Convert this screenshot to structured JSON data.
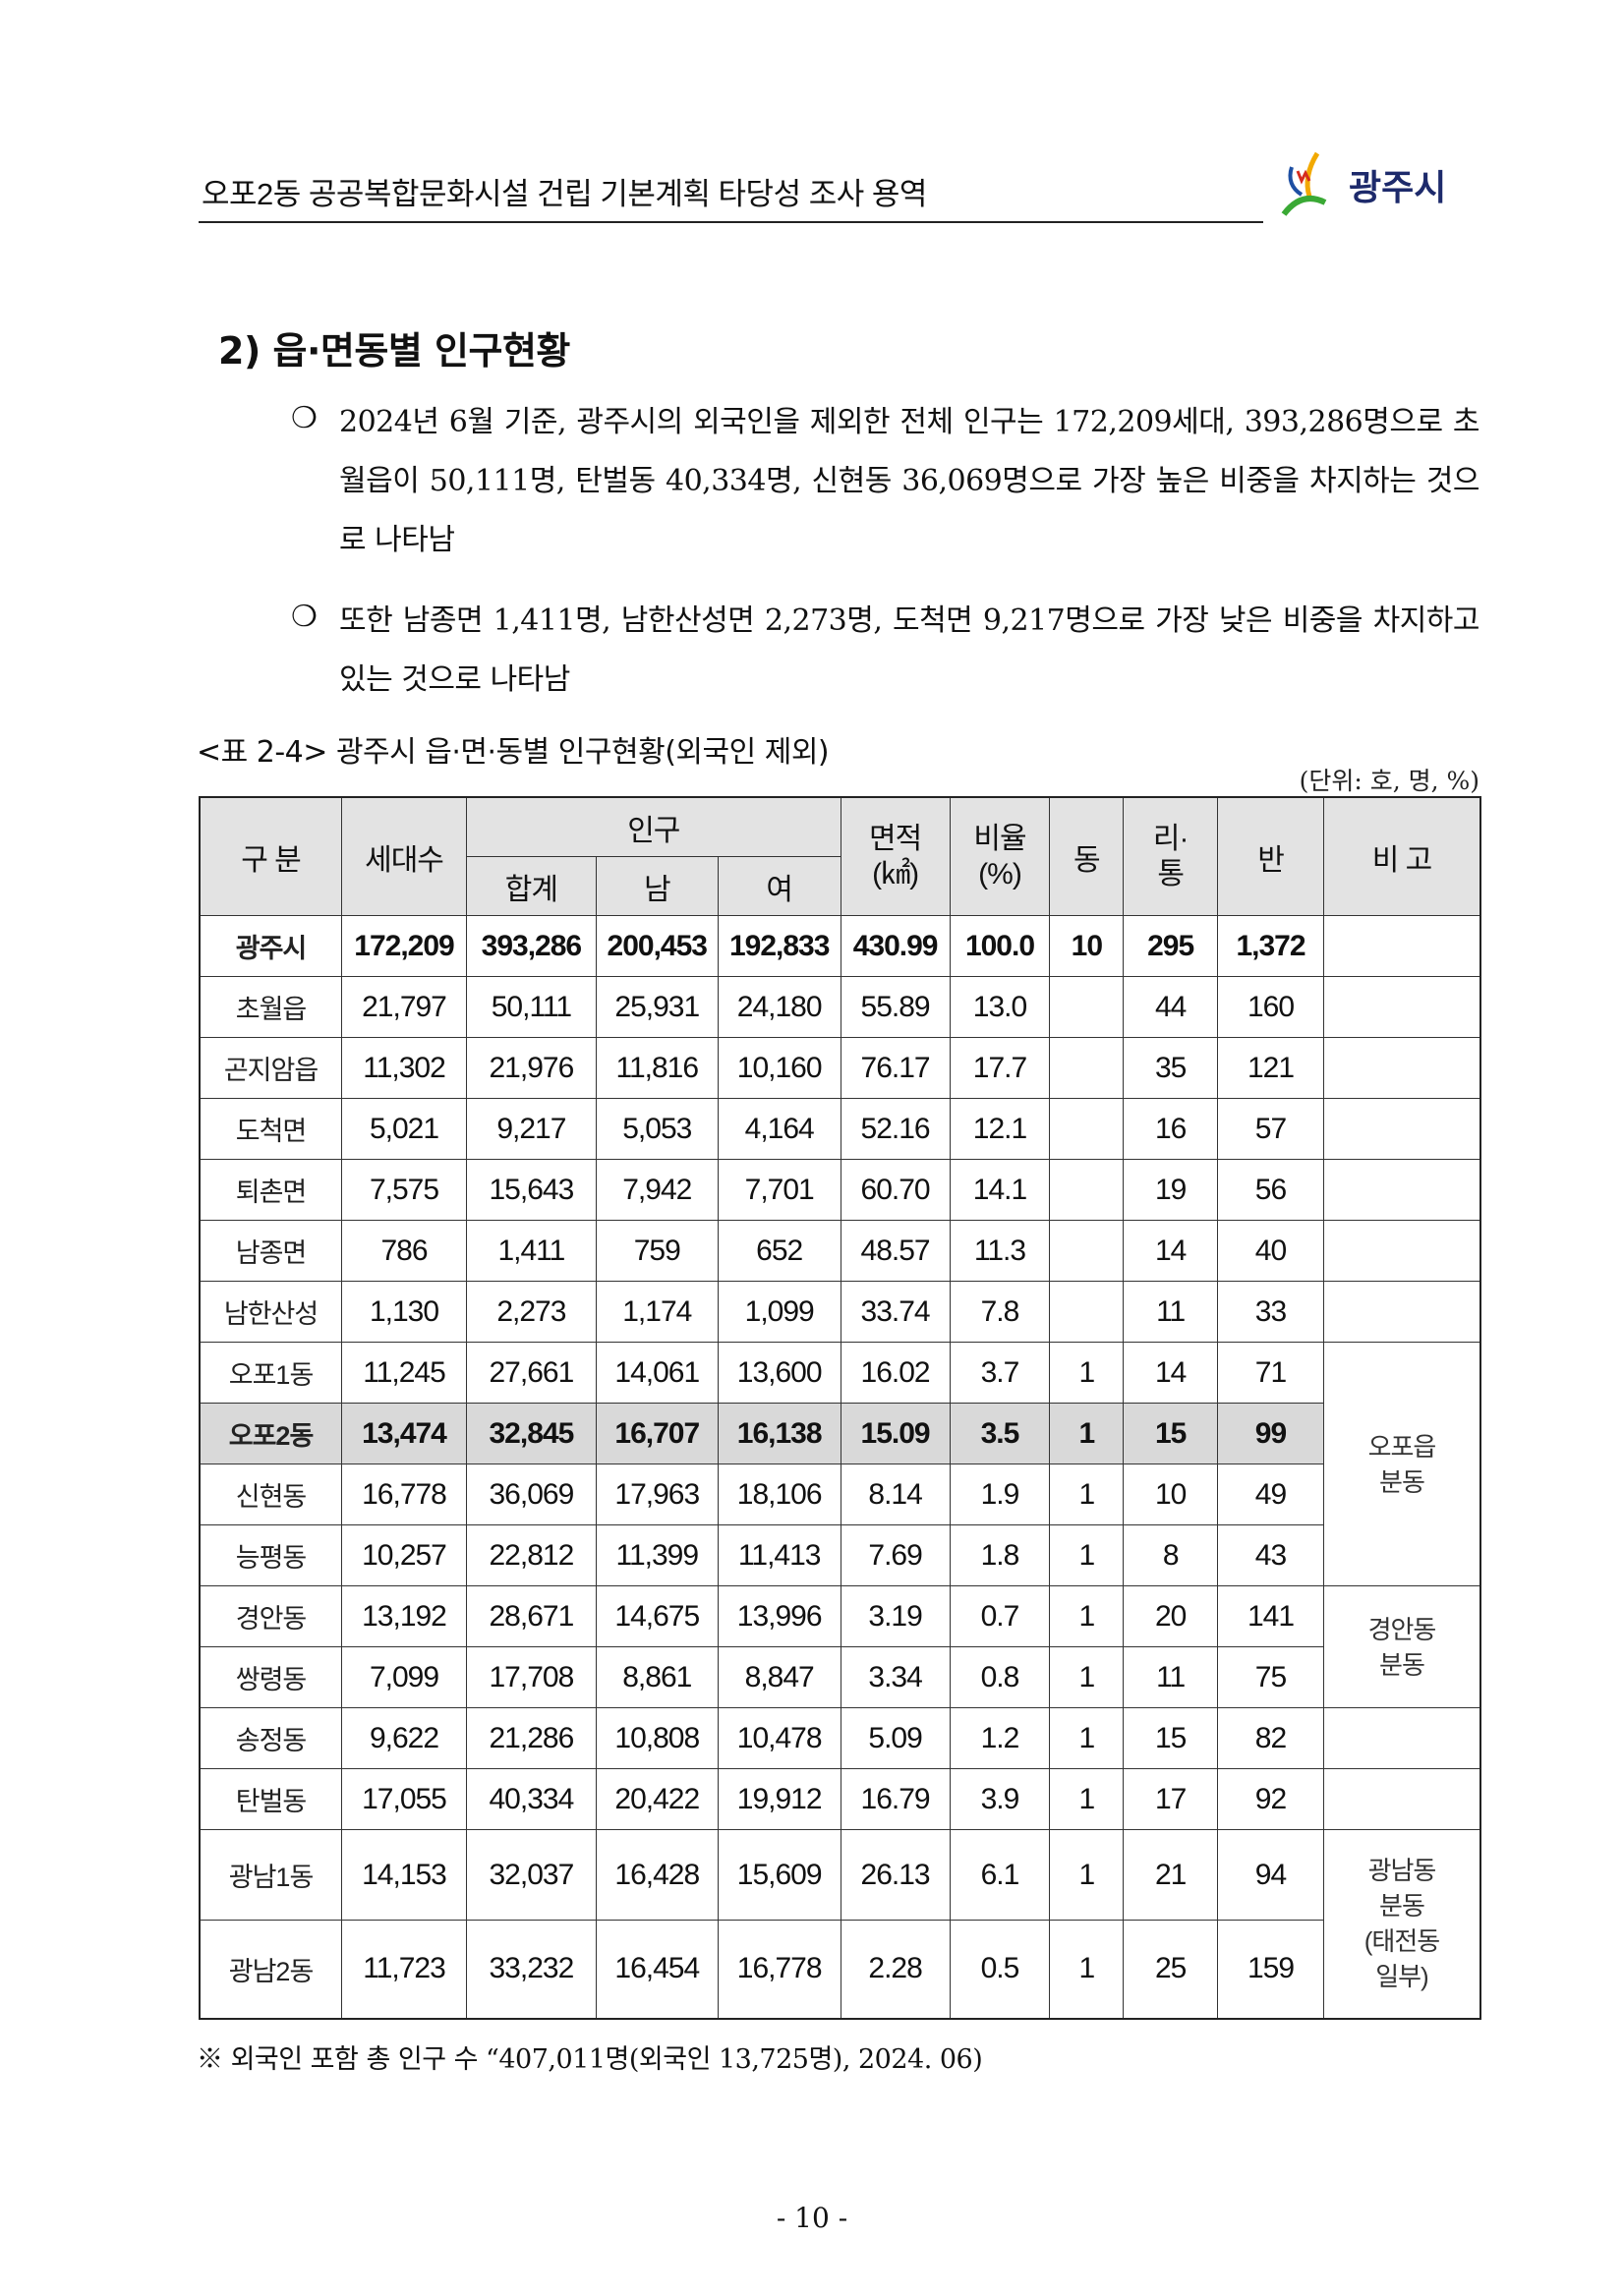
{
  "header": {
    "title": "오포2동 공공복합문화시설 건립 기본계획 타당성 조사 용역",
    "logo_text": "광주시"
  },
  "section": {
    "heading": "2) 읍·면동별 인구현황"
  },
  "paragraphs": [
    {
      "bullet": "❍",
      "text": "2024년 6월 기준, 광주시의 외국인을 제외한 전체 인구는 172,209세대, 393,286명으로 초월읍이 50,111명, 탄벌동 40,334명, 신현동 36,069명으로 가장 높은 비중을 차지하는 것으로 나타남"
    },
    {
      "bullet": "❍",
      "text": "또한 남종면 1,411명, 남한산성면 2,273명, 도척면 9,217명으로 가장 낮은 비중을 차지하고 있는 것으로 나타남"
    }
  ],
  "table": {
    "caption": "<표 2-4> 광주시 읍·면·동별 인구현황(외국인 제외)",
    "unit": "(단위: 호, 명, %)",
    "headers": {
      "division": "구 분",
      "households": "세대수",
      "population": "인구",
      "total": "합계",
      "male": "남",
      "female": "여",
      "area": "면적\n(㎢)",
      "ratio": "비율\n(%)",
      "dong": "동",
      "ri": "리·\n통",
      "ban": "반",
      "remark": "비 고"
    },
    "rows": [
      [
        "광주시",
        "172,209",
        "393,286",
        "200,453",
        "192,833",
        "430.99",
        "100.0",
        "10",
        "295",
        "1,372",
        ""
      ],
      [
        "초월읍",
        "21,797",
        "50,111",
        "25,931",
        "24,180",
        "55.89",
        "13.0",
        "",
        "44",
        "160",
        ""
      ],
      [
        "곤지암읍",
        "11,302",
        "21,976",
        "11,816",
        "10,160",
        "76.17",
        "17.7",
        "",
        "35",
        "121",
        ""
      ],
      [
        "도척면",
        "5,021",
        "9,217",
        "5,053",
        "4,164",
        "52.16",
        "12.1",
        "",
        "16",
        "57",
        ""
      ],
      [
        "퇴촌면",
        "7,575",
        "15,643",
        "7,942",
        "7,701",
        "60.70",
        "14.1",
        "",
        "19",
        "56",
        ""
      ],
      [
        "남종면",
        "786",
        "1,411",
        "759",
        "652",
        "48.57",
        "11.3",
        "",
        "14",
        "40",
        ""
      ],
      [
        "남한산성",
        "1,130",
        "2,273",
        "1,174",
        "1,099",
        "33.74",
        "7.8",
        "",
        "11",
        "33",
        ""
      ],
      [
        "오포1동",
        "11,245",
        "27,661",
        "14,061",
        "13,600",
        "16.02",
        "3.7",
        "1",
        "14",
        "71",
        "오포읍\n분동"
      ],
      [
        "오포2동",
        "13,474",
        "32,845",
        "16,707",
        "16,138",
        "15.09",
        "3.5",
        "1",
        "15",
        "99",
        ""
      ],
      [
        "신현동",
        "16,778",
        "36,069",
        "17,963",
        "18,106",
        "8.14",
        "1.9",
        "1",
        "10",
        "49",
        ""
      ],
      [
        "능평동",
        "10,257",
        "22,812",
        "11,399",
        "11,413",
        "7.69",
        "1.8",
        "1",
        "8",
        "43",
        ""
      ],
      [
        "경안동",
        "13,192",
        "28,671",
        "14,675",
        "13,996",
        "3.19",
        "0.7",
        "1",
        "20",
        "141",
        "경안동\n분동"
      ],
      [
        "쌍령동",
        "7,099",
        "17,708",
        "8,861",
        "8,847",
        "3.34",
        "0.8",
        "1",
        "11",
        "75",
        ""
      ],
      [
        "송정동",
        "9,622",
        "21,286",
        "10,808",
        "10,478",
        "5.09",
        "1.2",
        "1",
        "15",
        "82",
        ""
      ],
      [
        "탄벌동",
        "17,055",
        "40,334",
        "20,422",
        "19,912",
        "16.79",
        "3.9",
        "1",
        "17",
        "92",
        ""
      ],
      [
        "광남1동",
        "14,153",
        "32,037",
        "16,428",
        "15,609",
        "26.13",
        "6.1",
        "1",
        "21",
        "94",
        "광남동\n분동\n(태전동\n일부)"
      ],
      [
        "광남2동",
        "11,723",
        "33,232",
        "16,454",
        "16,778",
        "2.28",
        "0.5",
        "1",
        "25",
        "159",
        ""
      ]
    ],
    "highlight_row": "오포2동",
    "highlight_color": "#d9d9d9",
    "header_color": "#e3e3e3"
  },
  "note": "※ 외국인 포함 총 인구 수 “407,011명(외국인 13,725명), 2024. 06)",
  "page_number": "- 10 -"
}
